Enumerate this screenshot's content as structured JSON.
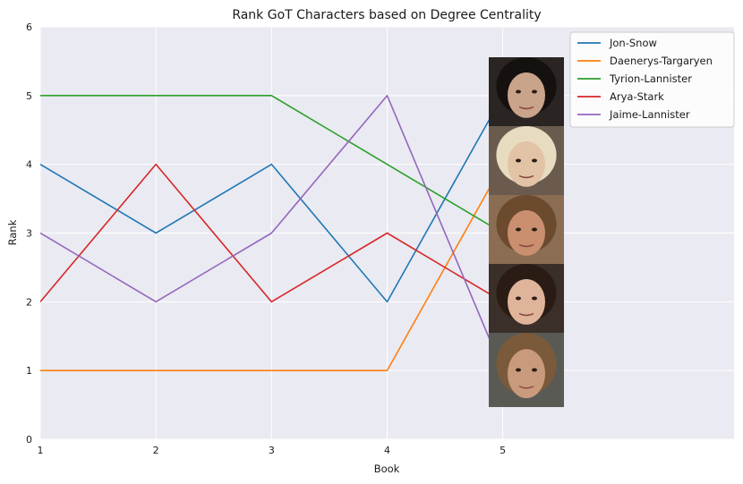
{
  "chart_data": {
    "type": "line",
    "title": "Rank GoT Characters based on Degree Centrality",
    "xlabel": "Book",
    "ylabel": "Rank",
    "x": [
      1,
      2,
      3,
      4,
      5
    ],
    "xticks": [
      "1",
      "2",
      "3",
      "4",
      "5"
    ],
    "yticks": [
      "0",
      "1",
      "2",
      "3",
      "4",
      "5",
      "6"
    ],
    "xlim": [
      1,
      7
    ],
    "ylim": [
      0,
      6
    ],
    "grid": true,
    "legend_position": "top-right",
    "series": [
      {
        "name": "Jon-Snow",
        "color": "#1f77b4",
        "values": [
          4,
          3,
          4,
          2,
          5
        ]
      },
      {
        "name": "Daenerys-Targaryen",
        "color": "#ff7f0e",
        "values": [
          1,
          1,
          1,
          1,
          4
        ]
      },
      {
        "name": "Tyrion-Lannister",
        "color": "#2ca02c",
        "values": [
          5,
          5,
          5,
          4,
          3
        ]
      },
      {
        "name": "Arya-Stark",
        "color": "#d62728",
        "values": [
          2,
          4,
          2,
          3,
          2
        ]
      },
      {
        "name": "Jaime-Lannister",
        "color": "#9467bd",
        "values": [
          3,
          2,
          3,
          5,
          1
        ]
      }
    ],
    "portrait_icons": [
      "jon-snow-portrait",
      "daenerys-targaryen-portrait",
      "tyrion-lannister-portrait",
      "arya-stark-portrait",
      "jaime-lannister-portrait"
    ]
  }
}
